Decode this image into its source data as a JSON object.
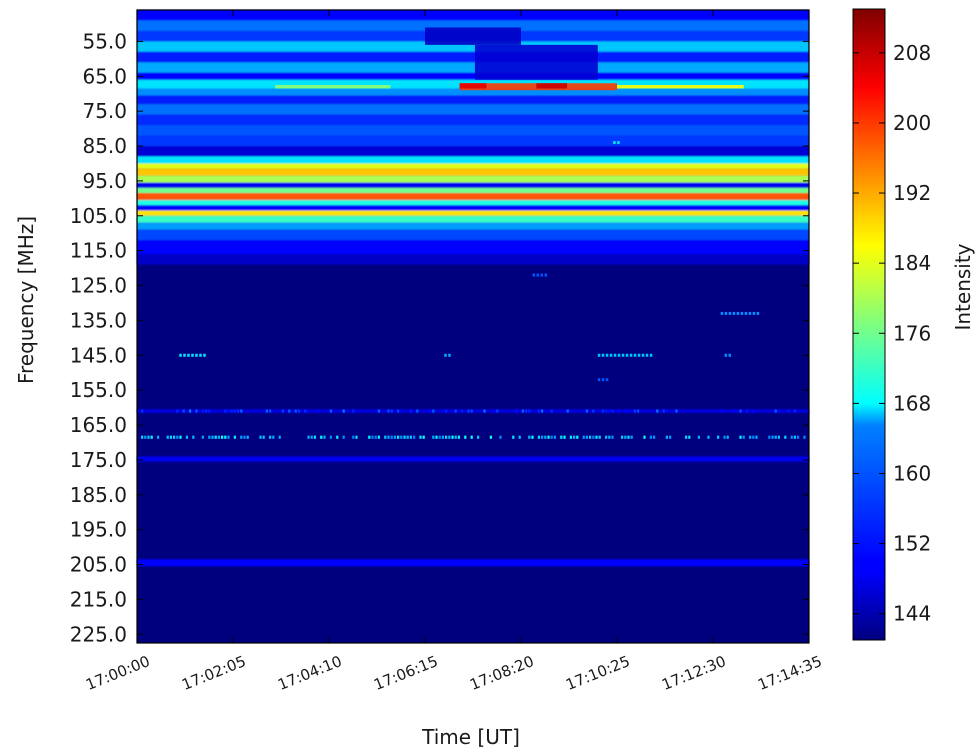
{
  "chart_data": {
    "type": "heatmap",
    "title": "",
    "xlabel": "Time [UT]",
    "ylabel": "Frequency [MHz]",
    "colorbar_label": "Intensity",
    "colormap": "jet",
    "x_ticks": [
      "17:00:00",
      "17:02:05",
      "17:04:10",
      "17:06:15",
      "17:08:20",
      "17:10:25",
      "17:12:30",
      "17:14:35"
    ],
    "y_ticks": [
      55.0,
      65.0,
      75.0,
      85.0,
      95.0,
      105.0,
      115.0,
      125.0,
      135.0,
      145.0,
      155.0,
      165.0,
      175.0,
      185.0,
      195.0,
      205.0,
      215.0,
      225.0
    ],
    "y_tick_labels": [
      "55.0",
      "65.0",
      "75.0",
      "85.0",
      "95.0",
      "105.0",
      "115.0",
      "125.0",
      "135.0",
      "145.0",
      "155.0",
      "165.0",
      "175.0",
      "185.0",
      "195.0",
      "205.0",
      "215.0",
      "225.0"
    ],
    "ylim": [
      46.0,
      227.5
    ],
    "y_inverted": true,
    "colorbar_ticks": [
      144,
      152,
      160,
      168,
      176,
      184,
      192,
      200,
      208
    ],
    "colorbar_tick_labels": [
      "144",
      "152",
      "160",
      "168",
      "176",
      "184",
      "192",
      "200",
      "208"
    ],
    "clim": [
      141,
      213
    ],
    "base_intensity": 141,
    "bands": [
      {
        "f0": 46.0,
        "f1": 49.0,
        "v": 150
      },
      {
        "f0": 49.0,
        "f1": 52.0,
        "v": 158
      },
      {
        "f0": 52.0,
        "f1": 55.0,
        "v": 154
      },
      {
        "f0": 55.0,
        "f1": 58.0,
        "v": 164
      },
      {
        "f0": 58.0,
        "f1": 61.0,
        "v": 152
      },
      {
        "f0": 61.0,
        "f1": 64.0,
        "v": 162
      },
      {
        "f0": 64.0,
        "f1": 66.0,
        "v": 150
      },
      {
        "f0": 66.0,
        "f1": 68.5,
        "v": 166
      },
      {
        "f0": 68.5,
        "f1": 70.5,
        "v": 160
      },
      {
        "f0": 70.5,
        "f1": 73.0,
        "v": 152
      },
      {
        "f0": 73.0,
        "f1": 76.0,
        "v": 158
      },
      {
        "f0": 76.0,
        "f1": 79.0,
        "v": 153
      },
      {
        "f0": 79.0,
        "f1": 82.0,
        "v": 156
      },
      {
        "f0": 82.0,
        "f1": 85.0,
        "v": 154
      },
      {
        "f0": 85.0,
        "f1": 88.0,
        "v": 147
      },
      {
        "f0": 88.0,
        "f1": 90.0,
        "v": 166
      },
      {
        "f0": 90.0,
        "f1": 91.5,
        "v": 184
      },
      {
        "f0": 91.5,
        "f1": 93.5,
        "v": 190
      },
      {
        "f0": 93.5,
        "f1": 95.5,
        "v": 180
      },
      {
        "f0": 95.5,
        "f1": 97.0,
        "v": 149
      },
      {
        "f0": 97.0,
        "f1": 98.5,
        "v": 176
      },
      {
        "f0": 98.5,
        "f1": 100.5,
        "v": 198
      },
      {
        "f0": 100.5,
        "f1": 102.0,
        "v": 170
      },
      {
        "f0": 102.0,
        "f1": 103.5,
        "v": 150
      },
      {
        "f0": 103.5,
        "f1": 105.0,
        "v": 188
      },
      {
        "f0": 105.0,
        "f1": 107.0,
        "v": 172
      },
      {
        "f0": 107.0,
        "f1": 109.0,
        "v": 161
      },
      {
        "f0": 109.0,
        "f1": 112.0,
        "v": 155
      },
      {
        "f0": 112.0,
        "f1": 116.0,
        "v": 150
      },
      {
        "f0": 116.0,
        "f1": 119.0,
        "v": 146
      },
      {
        "f0": 160.5,
        "f1": 161.5,
        "v": 148
      },
      {
        "f0": 174.0,
        "f1": 175.5,
        "v": 149
      },
      {
        "f0": 203.5,
        "f1": 205.5,
        "v": 150
      }
    ],
    "features": [
      {
        "t": "17:06:15",
        "t_end": "17:08:20",
        "f0": 51.0,
        "f1": 56.0,
        "v": 146
      },
      {
        "t": "17:07:20",
        "t_end": "17:10:00",
        "f0": 56.0,
        "f1": 66.0,
        "v": 147
      },
      {
        "t": "17:07:00",
        "t_end": "17:10:25",
        "f0": 67.0,
        "f1": 69.0,
        "v": 200
      },
      {
        "t": "17:10:25",
        "t_end": "17:13:10",
        "f0": 67.5,
        "f1": 68.5,
        "v": 186
      },
      {
        "t": "17:07:00",
        "t_end": "17:07:35",
        "f0": 67.0,
        "f1": 68.5,
        "v": 206
      },
      {
        "t": "17:08:40",
        "t_end": "17:09:20",
        "f0": 67.0,
        "f1": 68.5,
        "v": 208
      },
      {
        "t": "17:03:00",
        "t_end": "17:05:30",
        "f0": 67.5,
        "f1": 68.5,
        "v": 178
      }
    ],
    "spots": [
      {
        "t": "17:00:55",
        "t_end": "17:01:30",
        "f": 145.0,
        "v": 166
      },
      {
        "t": "17:06:40",
        "t_end": "17:06:50",
        "f": 145.0,
        "v": 162
      },
      {
        "t": "17:10:00",
        "t_end": "17:11:10",
        "f": 145.0,
        "v": 164
      },
      {
        "t": "17:12:45",
        "t_end": "17:12:55",
        "f": 145.0,
        "v": 160
      },
      {
        "t": "17:12:40",
        "t_end": "17:13:30",
        "f": 133.0,
        "v": 160
      },
      {
        "t": "17:08:35",
        "t_end": "17:08:55",
        "f": 122.0,
        "v": 156
      },
      {
        "t": "17:10:00",
        "t_end": "17:10:15",
        "f": 152.0,
        "v": 156
      },
      {
        "t": "17:10:20",
        "t_end": "17:10:30",
        "f": 84.0,
        "v": 166
      }
    ],
    "dotted_rows": [
      {
        "f": 168.5,
        "v": 164,
        "density": 0.55
      },
      {
        "f": 161.0,
        "v": 154,
        "density": 0.35
      }
    ]
  }
}
